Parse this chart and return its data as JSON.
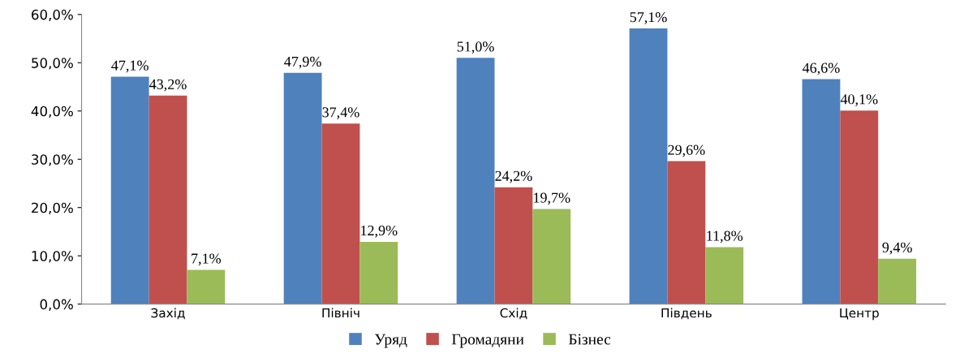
{
  "chart_data": {
    "type": "bar",
    "categories": [
      "Захід",
      "Північ",
      "Схід",
      "Південь",
      "Центр"
    ],
    "series": [
      {
        "name": "Уряд",
        "color": "#4f81bd",
        "values": [
          47.1,
          47.9,
          51.0,
          57.1,
          46.6
        ],
        "value_labels": [
          "47,1%",
          "47,9%",
          "51,0%",
          "57,1%",
          "46,6%"
        ]
      },
      {
        "name": "Громадяни",
        "color": "#c0504d",
        "values": [
          43.2,
          37.4,
          24.2,
          29.6,
          40.1
        ],
        "value_labels": [
          "43,2%",
          "37,4%",
          "24,2%",
          "29,6%",
          "40,1%"
        ]
      },
      {
        "name": "Бізнес",
        "color": "#9bbb59",
        "values": [
          7.1,
          12.9,
          19.7,
          11.8,
          9.4
        ],
        "value_labels": [
          "7,1%",
          "12,9%",
          "19,7%",
          "11,8%",
          "9,4%"
        ]
      }
    ],
    "ylim": [
      0,
      60
    ],
    "yticks": [
      {
        "value": 0,
        "label": "0,0%"
      },
      {
        "value": 10,
        "label": "10,0%"
      },
      {
        "value": 20,
        "label": "20,0%"
      },
      {
        "value": 30,
        "label": "30,0%"
      },
      {
        "value": 40,
        "label": "40,0%"
      },
      {
        "value": 50,
        "label": "50,0%"
      },
      {
        "value": 60,
        "label": "60,0%"
      }
    ],
    "grid": false,
    "legend": "bottom"
  }
}
